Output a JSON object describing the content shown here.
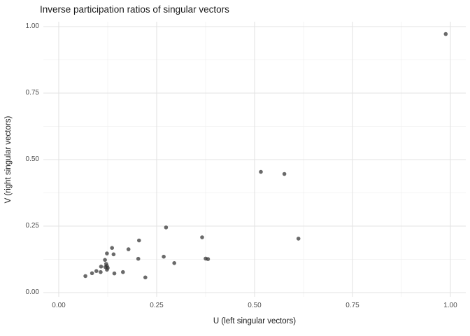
{
  "chart_data": {
    "type": "scatter",
    "title": "Inverse participation ratios of singular vectors",
    "xlabel": "U (left singular vectors)",
    "ylabel": "V (right singular vectors)",
    "xlim": [
      -0.04,
      1.04
    ],
    "ylim": [
      -0.016,
      1.016
    ],
    "x_ticks": [
      0.0,
      0.25,
      0.5,
      0.75,
      1.0
    ],
    "x_tick_labels": [
      "0.00",
      "0.25",
      "0.50",
      "0.75",
      "1.00"
    ],
    "y_ticks": [
      0.0,
      0.25,
      0.5,
      0.75,
      1.0
    ],
    "y_tick_labels": [
      "0.00",
      "0.25",
      "0.50",
      "0.75",
      "1.00"
    ],
    "x_minor_ticks": [
      0.125,
      0.375,
      0.625,
      0.875
    ],
    "y_minor_ticks": [
      0.125,
      0.375,
      0.625,
      0.875
    ],
    "grid": "major+minor",
    "legend": "none",
    "theme": {
      "background": "#ffffff",
      "grid_major_color": "#e3e3e3",
      "grid_minor_color": "#f0f0f0",
      "point_color": "#303030",
      "point_opacity": 0.72,
      "point_radius": 2.8,
      "tick_label_color": "#4d4d4d",
      "title_color": "#1a1a1a"
    },
    "points": [
      [
        0.988,
        0.972
      ],
      [
        0.516,
        0.454
      ],
      [
        0.576,
        0.446
      ],
      [
        0.612,
        0.203
      ],
      [
        0.274,
        0.245
      ],
      [
        0.366,
        0.208
      ],
      [
        0.375,
        0.128
      ],
      [
        0.381,
        0.126
      ],
      [
        0.295,
        0.111
      ],
      [
        0.268,
        0.135
      ],
      [
        0.203,
        0.127
      ],
      [
        0.205,
        0.196
      ],
      [
        0.221,
        0.057
      ],
      [
        0.123,
        0.147
      ],
      [
        0.14,
        0.144
      ],
      [
        0.136,
        0.168
      ],
      [
        0.178,
        0.163
      ],
      [
        0.118,
        0.123
      ],
      [
        0.121,
        0.108
      ],
      [
        0.108,
        0.098
      ],
      [
        0.123,
        0.1
      ],
      [
        0.119,
        0.096
      ],
      [
        0.125,
        0.093
      ],
      [
        0.123,
        0.086
      ],
      [
        0.096,
        0.081
      ],
      [
        0.085,
        0.073
      ],
      [
        0.107,
        0.077
      ],
      [
        0.142,
        0.072
      ],
      [
        0.164,
        0.077
      ],
      [
        0.068,
        0.062
      ]
    ]
  }
}
